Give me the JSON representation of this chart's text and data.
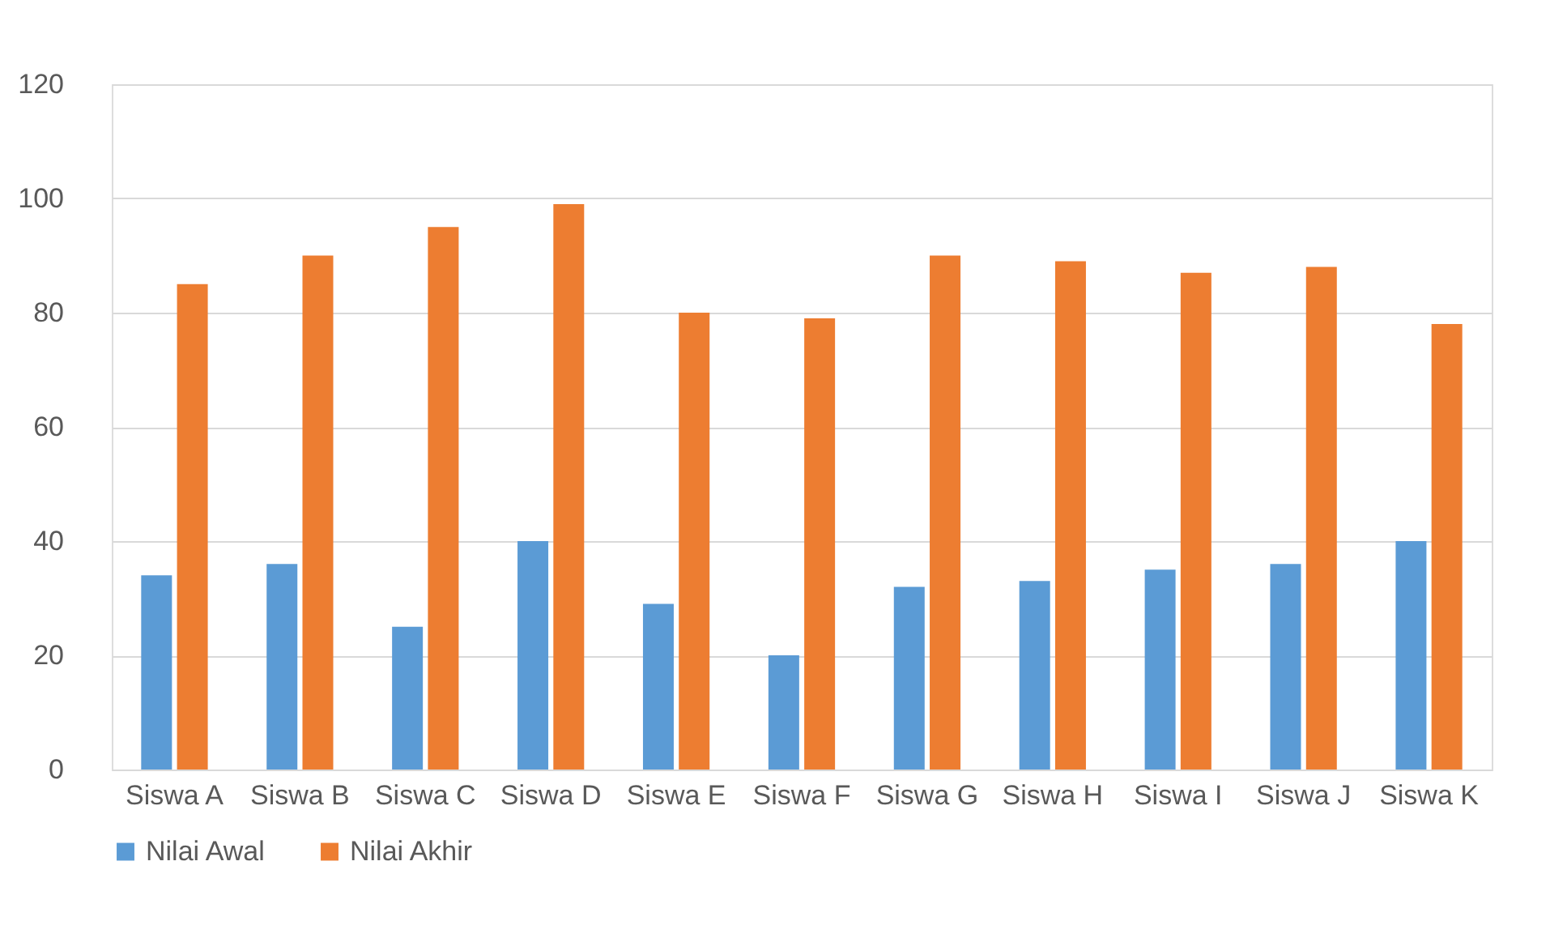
{
  "chart_data": {
    "type": "bar",
    "categories": [
      "Siswa A",
      "Siswa B",
      "Siswa C",
      "Siswa D",
      "Siswa E",
      "Siswa F",
      "Siswa G",
      "Siswa H",
      "Siswa I",
      "Siswa J",
      "Siswa K"
    ],
    "series": [
      {
        "name": "Nilai Awal",
        "color": "#5b9bd5",
        "values": [
          34,
          36,
          25,
          40,
          29,
          20,
          32,
          33,
          35,
          36,
          40
        ]
      },
      {
        "name": "Nilai Akhir",
        "color": "#ed7d31",
        "values": [
          85,
          90,
          95,
          99,
          80,
          79,
          90,
          89,
          87,
          88,
          78
        ]
      }
    ],
    "ylim": [
      0,
      120
    ],
    "yticks": [
      0,
      20,
      40,
      60,
      80,
      100,
      120
    ],
    "grid": "y",
    "legend": "bottom"
  }
}
